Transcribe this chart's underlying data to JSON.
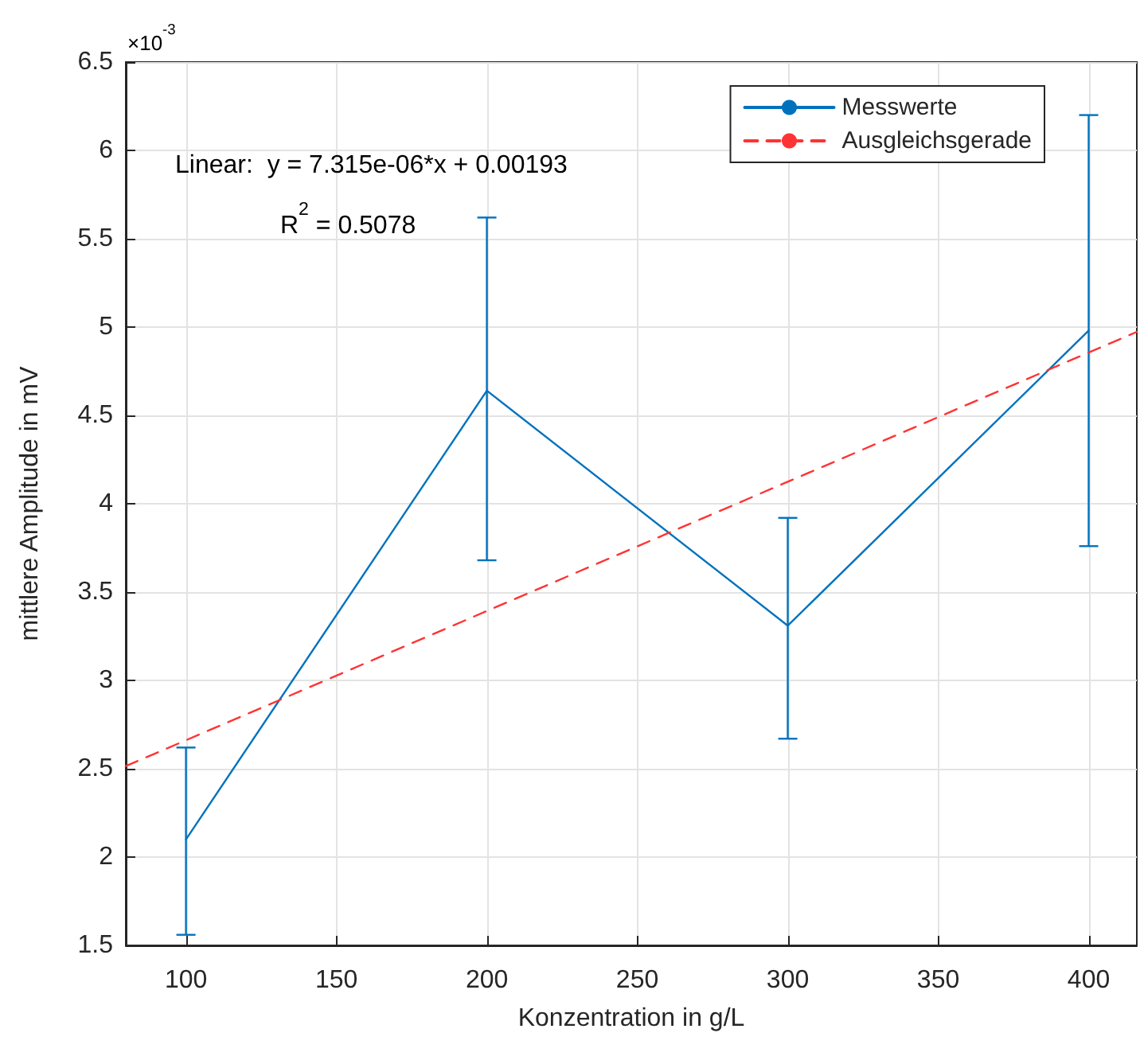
{
  "chart_data": {
    "type": "line",
    "xlabel": "Konzentration in g/L",
    "ylabel": "mittlere Amplitude in mV",
    "x": [
      100,
      200,
      300,
      400
    ],
    "series": [
      {
        "name": "Messwerte",
        "color": "#0072bd",
        "values": [
          2.1,
          4.64,
          3.31,
          4.98
        ],
        "errors": [
          [
            1.56,
            2.62
          ],
          [
            3.68,
            5.62
          ],
          [
            2.67,
            3.92
          ],
          1.22
        ],
        "marker": "none",
        "line_style": "solid"
      },
      {
        "name": "Ausgleichsgerade",
        "type": "line",
        "color": "#ff3333",
        "x": [
          80,
          416
        ],
        "values": [
          2.515,
          4.973
        ],
        "marker": "none",
        "line_style": "dashed"
      }
    ],
    "xlim": [
      80,
      416
    ],
    "xticks": [
      100,
      150,
      200,
      250,
      300,
      350,
      400
    ],
    "ylim": [
      1.5,
      6.5
    ],
    "yticks": [
      1.5,
      2,
      2.5,
      3,
      3.5,
      4,
      4.5,
      5,
      5.5,
      6,
      6.5
    ],
    "annotations": [
      "×10$^{-3}$",
      "Linear:  y = 7.315e-06*x + 0.00193",
      "R$^{2}$ = 0.5078"
    ],
    "grid": true,
    "legend": "top right"
  }
}
